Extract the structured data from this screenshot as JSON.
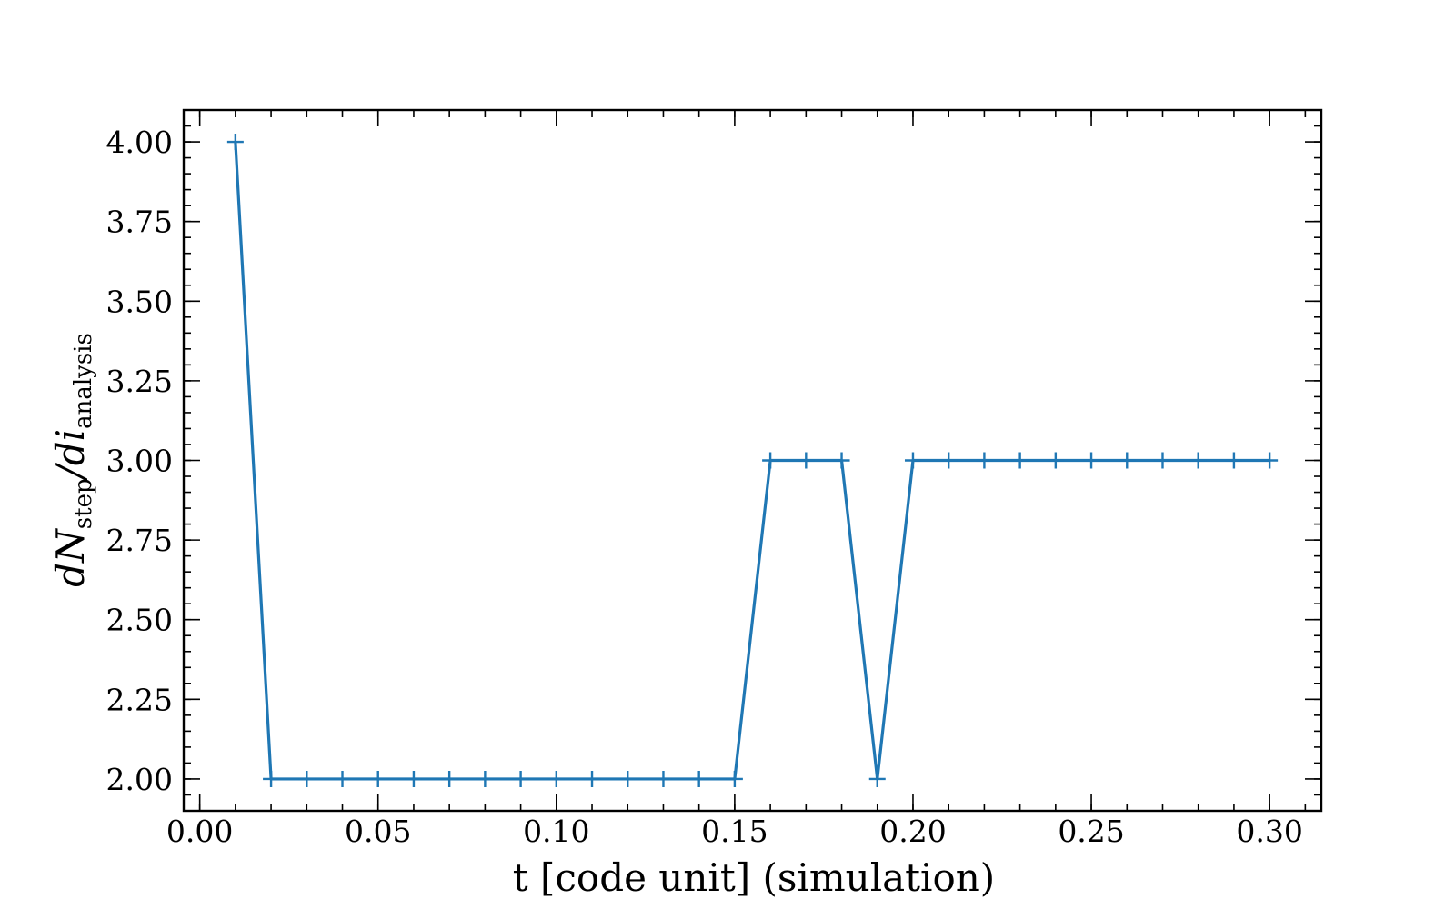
{
  "chart_data": {
    "type": "line",
    "xlabel": "t [code unit] (simulation)",
    "ylabel": {
      "d1": "dN",
      "sub1": "step",
      "d2": "/di",
      "sub2": "analysis"
    },
    "x": [
      0.01,
      0.02,
      0.03,
      0.04,
      0.05,
      0.06,
      0.07,
      0.08,
      0.09,
      0.1,
      0.11,
      0.12,
      0.13,
      0.14,
      0.15,
      0.16,
      0.17,
      0.18,
      0.19,
      0.2,
      0.21,
      0.22,
      0.23,
      0.24,
      0.25,
      0.26,
      0.27,
      0.28,
      0.29,
      0.3
    ],
    "series": [
      {
        "color": "#1f77b4",
        "marker": "+",
        "values": [
          4,
          2,
          2,
          2,
          2,
          2,
          2,
          2,
          2,
          2,
          2,
          2,
          2,
          2,
          2,
          3,
          3,
          3,
          2,
          3,
          3,
          3,
          3,
          3,
          3,
          3,
          3,
          3,
          3,
          3
        ]
      }
    ],
    "xlim": [
      -0.0045,
      0.3145
    ],
    "ylim": [
      1.9,
      4.1
    ],
    "xticks": [
      {
        "value": 0,
        "label": "0.00"
      },
      0.05,
      {
        "value": 0.1,
        "label": "0.10"
      },
      0.15,
      {
        "value": 0.2,
        "label": "0.20"
      },
      0.25,
      {
        "value": 0.3,
        "label": "0.30"
      }
    ],
    "yticks": [
      {
        "value": 2,
        "label": "2.00"
      },
      2.25,
      {
        "value": 2.5,
        "label": "2.50"
      },
      2.75,
      {
        "value": 3,
        "label": "3.00"
      },
      3.25,
      {
        "value": 3.5,
        "label": "3.50"
      },
      3.75,
      {
        "value": 4,
        "label": "4.00"
      }
    ],
    "xminorticks": [
      0,
      0.01,
      0.02,
      0.03,
      0.04,
      0.05,
      0.06,
      0.07,
      0.08,
      0.09,
      0.1,
      0.11,
      0.12,
      0.13,
      0.14,
      0.15,
      0.16,
      0.17,
      0.18,
      0.19,
      0.2,
      0.21,
      0.22,
      0.23,
      0.24,
      0.25,
      0.26,
      0.27,
      0.28,
      0.29,
      0.3,
      0.31
    ],
    "yminorticks": [
      1.9,
      1.95,
      2,
      2.05,
      2.1,
      2.15,
      2.2,
      2.25,
      2.3,
      2.35,
      2.4,
      2.45,
      2.5,
      2.55,
      2.6,
      2.65,
      2.7,
      2.75,
      2.8,
      2.85,
      2.9,
      2.95,
      3,
      3.05,
      3.1,
      3.15,
      3.2,
      3.25,
      3.3,
      3.35,
      3.4,
      3.45,
      3.5,
      3.55,
      3.6,
      3.65,
      3.7,
      3.75,
      3.8,
      3.85,
      3.9,
      3.95,
      4,
      4.05,
      4.1
    ],
    "grid": false
  }
}
